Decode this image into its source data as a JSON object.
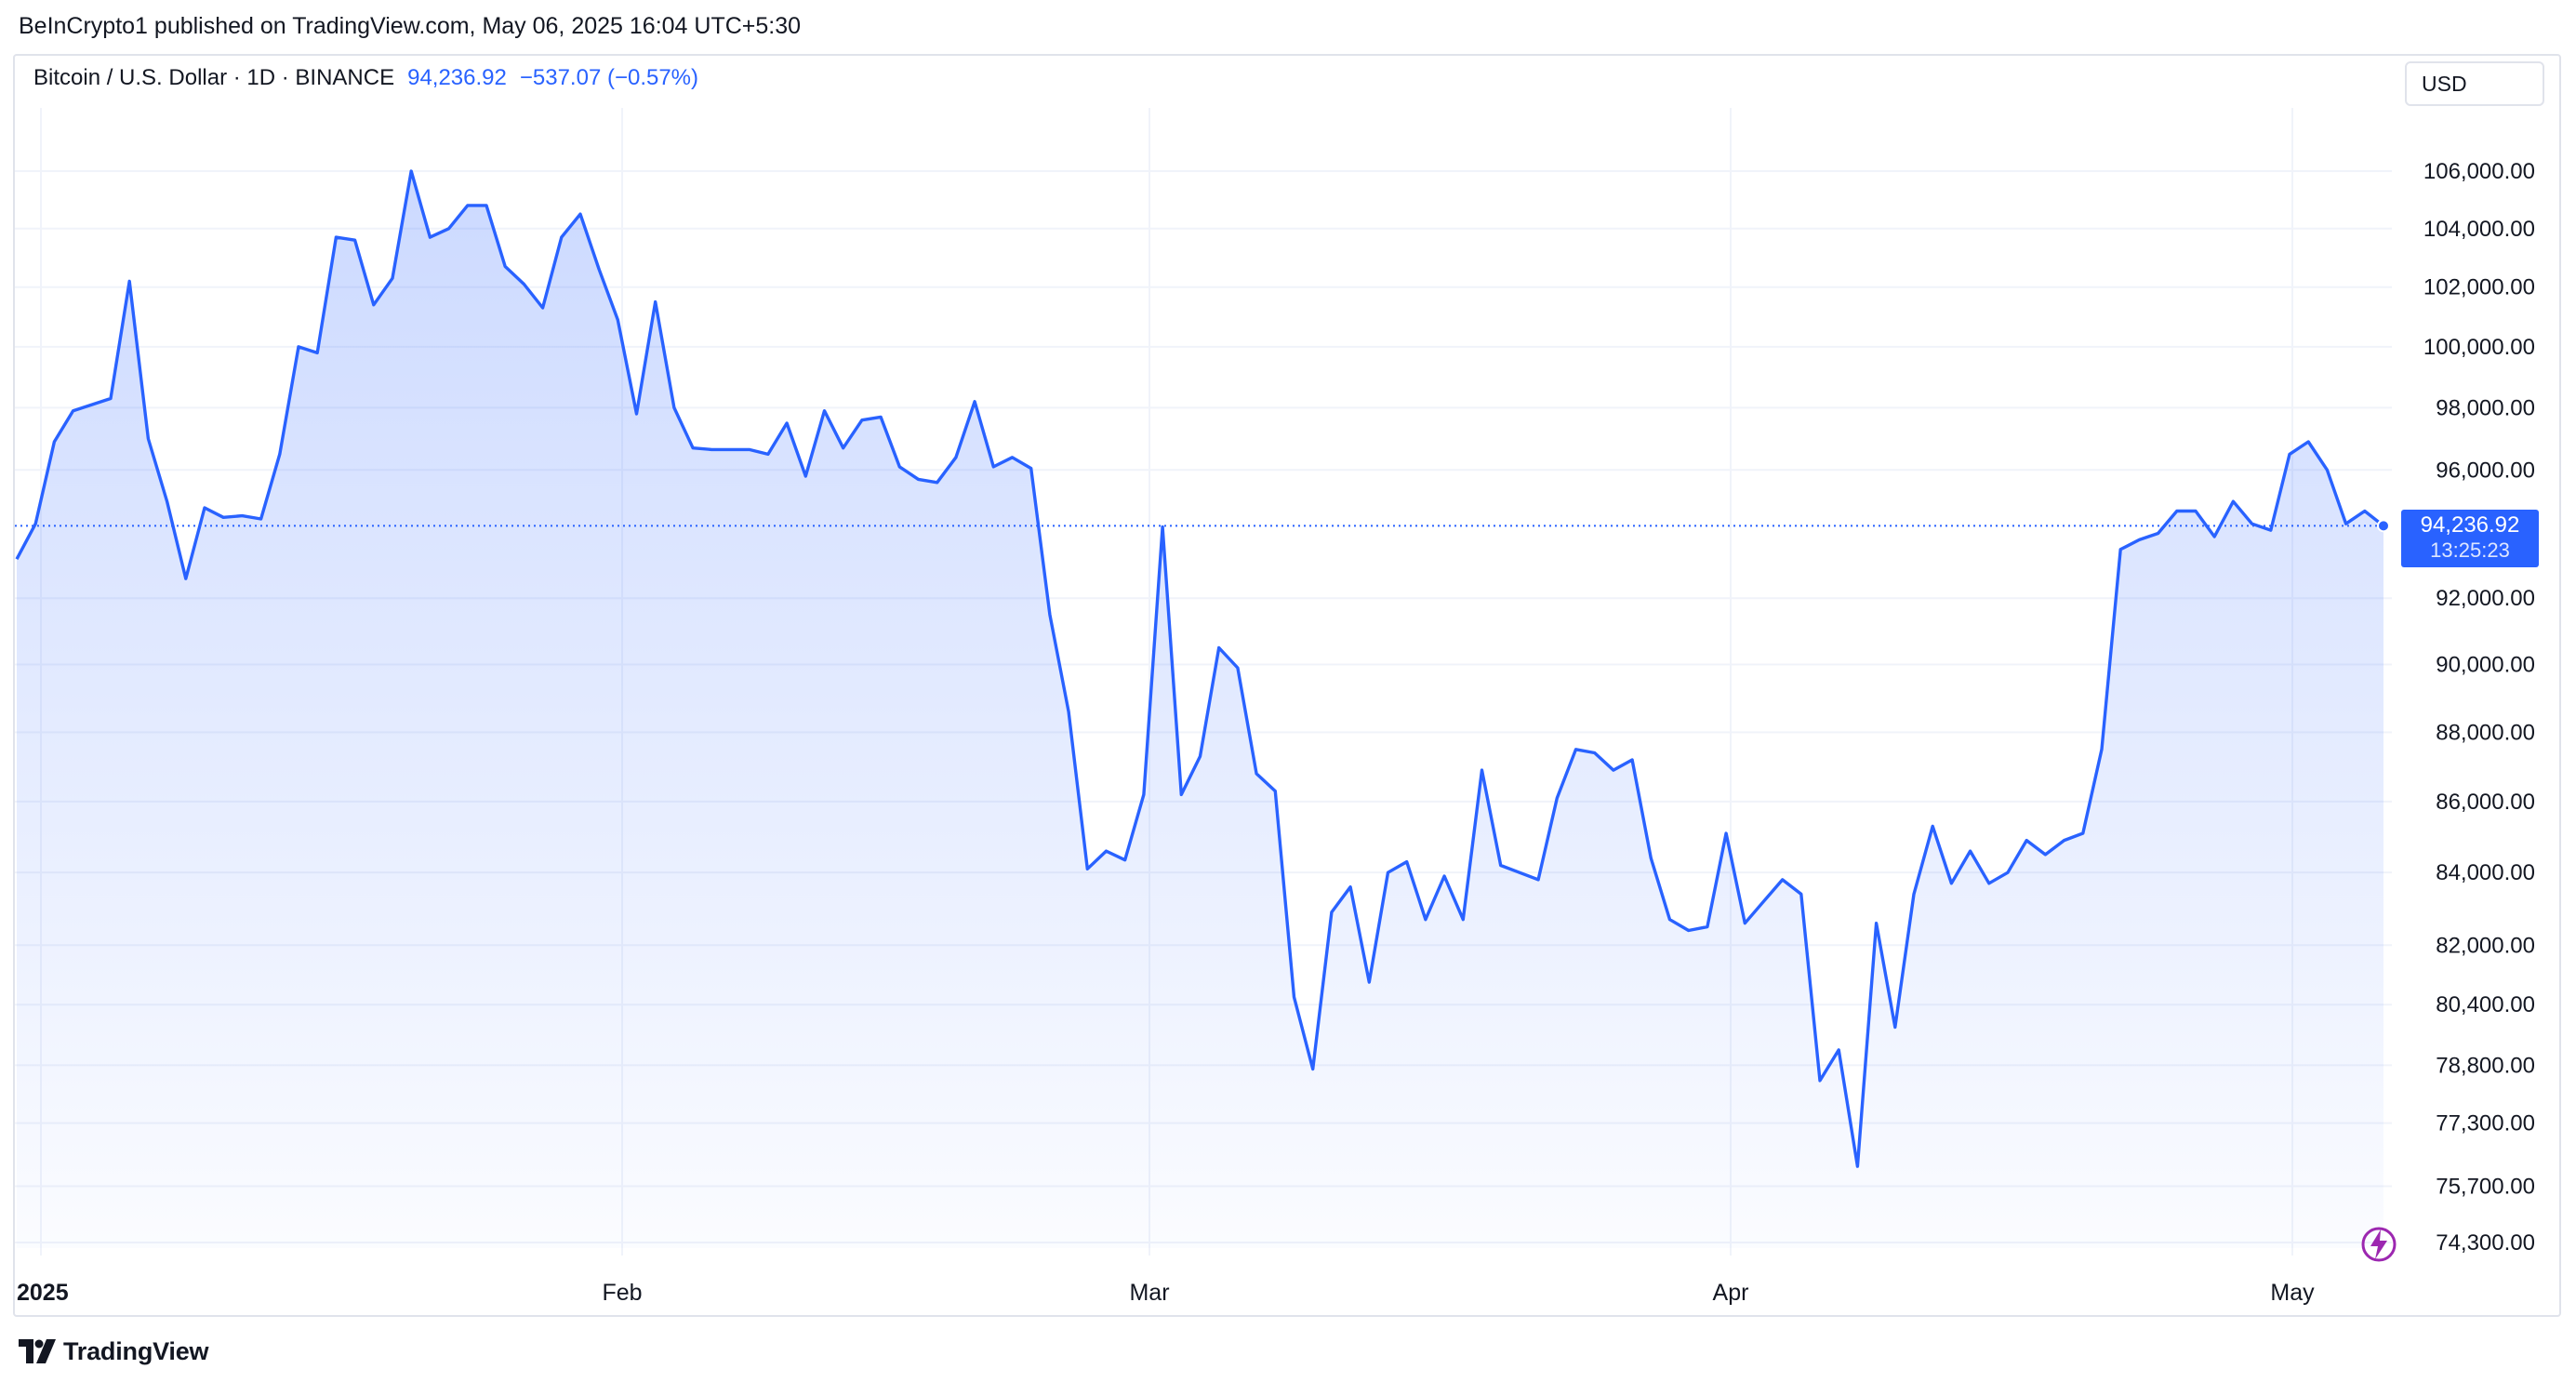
{
  "header": {
    "published_line": "BeInCrypto1 published on TradingView.com, May 06, 2025 16:04 UTC+5:30"
  },
  "legend": {
    "symbol": "Bitcoin / U.S. Dollar · 1D · BINANCE",
    "last_price": "94,236.92",
    "change": "−537.07 (−0.57%)"
  },
  "currency_button": "USD",
  "last_price_tag": {
    "value": "94,236.92",
    "countdown": "13:25:23"
  },
  "brand": "TradingView",
  "colors": {
    "line": "#2962ff",
    "tag": "#2962ff",
    "grid": "#f0f3fa",
    "text": "#131722"
  },
  "icons": {
    "brand": "tradingview-logo-icon",
    "spark": "lightning-bolt-icon"
  },
  "chart_data": {
    "type": "area",
    "series": [
      {
        "values": [
          93200,
          94300,
          96900,
          97900,
          98100,
          98300,
          102200,
          97000,
          95000,
          92600,
          94800,
          94500,
          94550,
          94450,
          96500,
          100000,
          99800,
          103700,
          103600,
          101400,
          102300,
          106000,
          103700,
          104000,
          104800,
          104800,
          102700,
          102100,
          101300,
          103700,
          104500,
          102600,
          100900,
          97800,
          101500,
          98000,
          96700,
          96650,
          96650,
          96650,
          96500,
          97500,
          95800,
          97900,
          96700,
          97600,
          97700,
          96100,
          95700,
          95600,
          96400,
          98200,
          96100,
          96400,
          96050,
          91500,
          88600,
          84100,
          84600,
          84350,
          86200,
          94200,
          86200,
          87300,
          90500,
          89900,
          86800,
          86300,
          80600,
          78700,
          82900,
          83600,
          81000,
          84000,
          84300,
          82700,
          83900,
          82700,
          86900,
          84200,
          84000,
          83800,
          86100,
          87500,
          87400,
          86900,
          87200,
          84400,
          82700,
          82400,
          82500,
          85100,
          82600,
          83200,
          83800,
          83400,
          78400,
          79200,
          76200,
          82600,
          79800,
          83400,
          85300,
          83700,
          84600,
          83700,
          84000,
          84900,
          84500,
          84900,
          85100,
          87500,
          93500,
          93800,
          94000,
          94700,
          94700,
          93900,
          95000,
          94300,
          94100,
          96500,
          96900,
          96000,
          94300,
          94700,
          94236.92
        ]
      }
    ],
    "x_tick_labels": [
      "2025",
      "Feb",
      "Mar",
      "Apr",
      "May"
    ],
    "y_tick_labels": [
      "106,000.00",
      "104,000.00",
      "102,000.00",
      "100,000.00",
      "98,000.00",
      "96,000.00",
      "92,000.00",
      "90,000.00",
      "88,000.00",
      "86,000.00",
      "84,000.00",
      "82,000.00",
      "80,400.00",
      "78,800.00",
      "77,300.00",
      "75,700.00",
      "74,300.00"
    ],
    "y_scale": "log",
    "last_value": 94236.92,
    "grid": true
  }
}
